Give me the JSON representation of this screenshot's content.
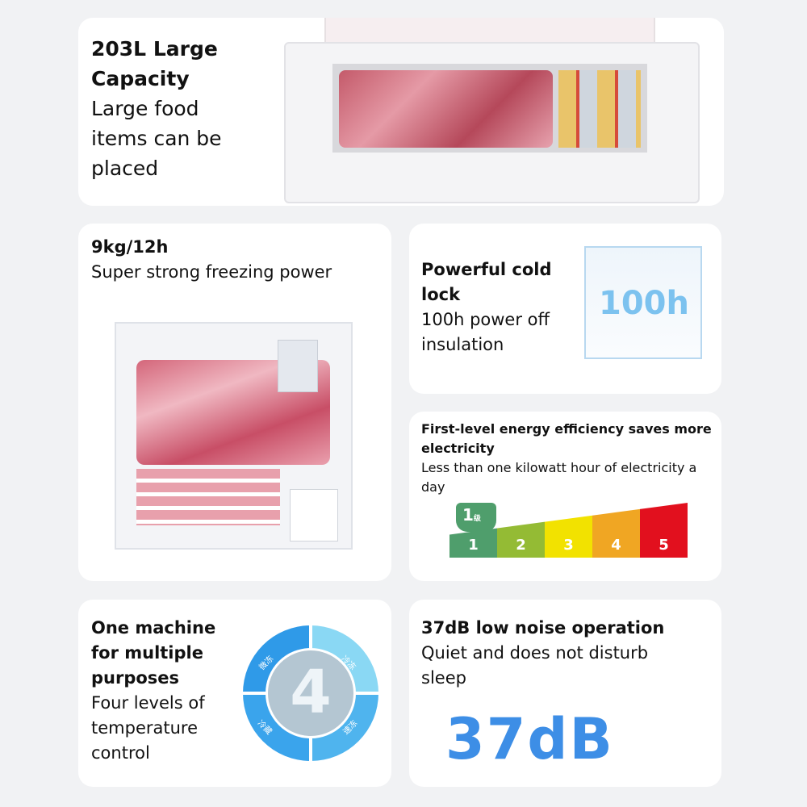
{
  "capacity": {
    "title": "203L Large Capacity",
    "desc": "Large food items can be placed"
  },
  "freezing": {
    "title": "9kg/12h",
    "desc": "Super strong freezing power"
  },
  "cold_lock": {
    "title": "Powerful cold lock",
    "desc": "100h power off insulation",
    "badge": "100h"
  },
  "energy": {
    "title": "First-level energy efficiency saves more electricity",
    "desc": "Less than one kilowatt hour of electricity a day",
    "tag": "1",
    "tag_unit": "级",
    "levels": [
      {
        "label": "1",
        "color": "#4f9e6c"
      },
      {
        "label": "2",
        "color": "#94bb34"
      },
      {
        "label": "3",
        "color": "#f2e200"
      },
      {
        "label": "4",
        "color": "#f0a623"
      },
      {
        "label": "5",
        "color": "#e2101e"
      }
    ]
  },
  "modes": {
    "title": "One machine for multiple purposes",
    "desc": "Four levels of temperature control",
    "center": "4",
    "segments": [
      "微冻",
      "冷冻",
      "冷藏",
      "速冻"
    ]
  },
  "noise": {
    "title": "37dB low noise operation",
    "desc": "Quiet and does not disturb sleep",
    "badge": "37dB"
  }
}
